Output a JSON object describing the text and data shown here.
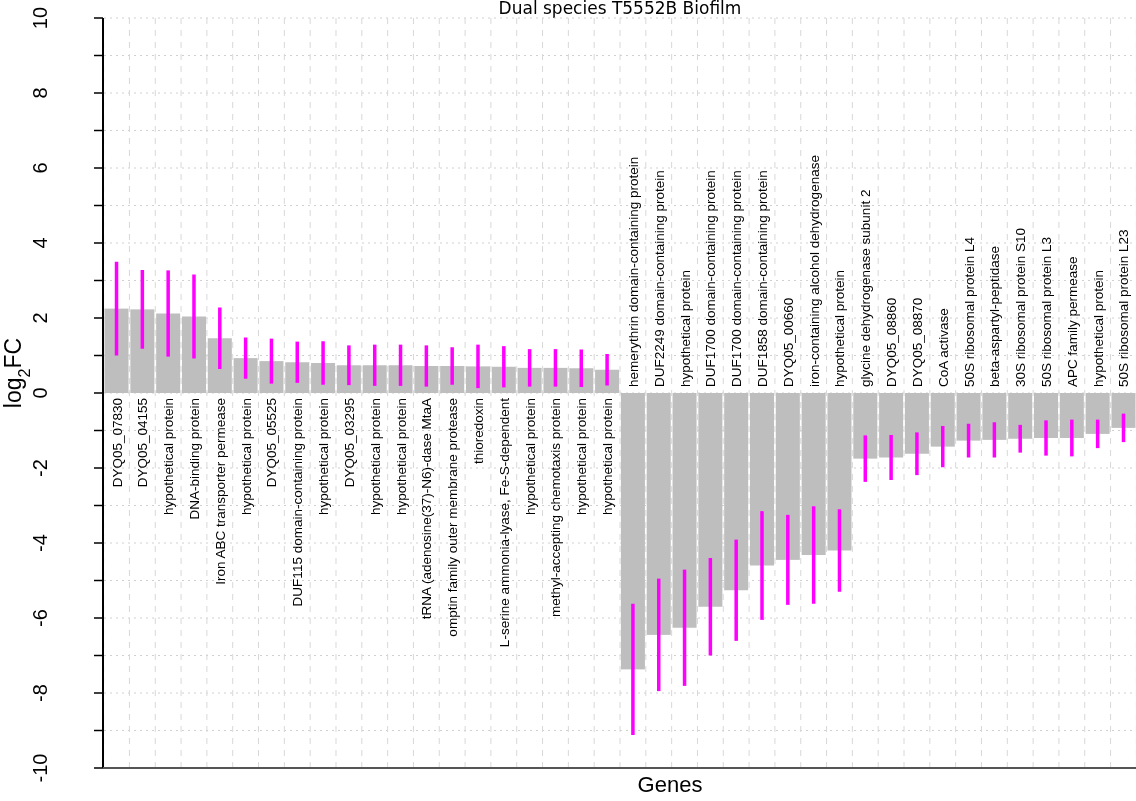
{
  "chart_data": {
    "type": "bar",
    "title": "Dual species T5552B Biofilm",
    "xlabel": "Genes",
    "ylabel": "log$_{2}$FC",
    "categories": [
      "DYQ05_07830",
      "DYQ05_04155",
      "hypothetical protein",
      "DNA-binding protein",
      "Iron ABC transporter permease",
      "hypothetical protein",
      "DYQ05_05525",
      "DUF115 domain-containing protein",
      "hypothetical protein",
      "DYQ05_03295",
      "hypothetical protein",
      "hypothetical protein",
      "tRNA (adenosine(37)-N6)-dase MtaA",
      "omptin family outer membrane protease",
      "thioredoxin",
      "L-serine ammonia-lyase, Fe-S-dependent",
      "hypothetical protein",
      "methyl-accepting chemotaxis protein",
      "hypothetical protein",
      "hypothetical protein",
      "hemerythrin domain-containing protein",
      "DUF2249 domain-containing protein",
      "hypothetical protein",
      "DUF1700 domain-containing protein",
      "DUF1700 domain-containing protein",
      "DUF1858 domain-containing protein",
      "DYQ05_00660",
      "iron-containing alcohol dehydrogenase",
      "hypothetical protein",
      "glycine dehydrogenase subunit 2",
      "DYQ05_08860",
      "DYQ05_08870",
      "CoA activase",
      "50S ribosomal protein L4",
      "beta-aspartyl-peptidase",
      "30S ribosomal protein S10",
      "50S ribosomal protein L3",
      "APC family permease",
      "hypothetical protein",
      "50S ribosomal protein L23"
    ],
    "series": [
      {
        "color": "#bebebe",
        "values": [
          2.25,
          2.23,
          2.12,
          2.04,
          1.46,
          0.93,
          0.85,
          0.82,
          0.8,
          0.74,
          0.74,
          0.74,
          0.72,
          0.72,
          0.71,
          0.7,
          0.67,
          0.67,
          0.66,
          0.62,
          -7.37,
          -6.45,
          -6.26,
          -5.7,
          -5.26,
          -4.6,
          -4.45,
          -4.32,
          -4.2,
          -1.75,
          -1.72,
          -1.62,
          -1.43,
          -1.27,
          -1.25,
          -1.22,
          -1.2,
          -1.2,
          -1.09,
          -0.93
        ],
        "errors": [
          1.25,
          1.05,
          1.15,
          1.12,
          0.82,
          0.55,
          0.6,
          0.55,
          0.58,
          0.53,
          0.55,
          0.55,
          0.55,
          0.5,
          0.58,
          0.55,
          0.5,
          0.5,
          0.5,
          0.42,
          1.75,
          1.5,
          1.55,
          1.3,
          1.35,
          1.45,
          1.2,
          1.3,
          1.1,
          0.62,
          0.6,
          0.57,
          0.55,
          0.45,
          0.47,
          0.37,
          0.47,
          0.49,
          0.38,
          0.38
        ]
      }
    ],
    "ylim": [
      -10,
      10
    ],
    "yticks": [
      -10,
      {
        "value": -9,
        "label": null
      },
      -8,
      {
        "value": -7,
        "label": null
      },
      -6,
      {
        "value": -5,
        "label": null
      },
      -4,
      {
        "value": -3,
        "label": null
      },
      -2,
      {
        "value": -1,
        "label": null
      },
      0,
      {
        "value": 1,
        "label": null
      },
      2,
      {
        "value": 3,
        "label": null
      },
      4,
      {
        "value": 5,
        "label": null
      },
      6,
      {
        "value": 7,
        "label": null
      },
      8,
      {
        "value": 9,
        "label": null
      },
      10
    ],
    "grid": true
  }
}
